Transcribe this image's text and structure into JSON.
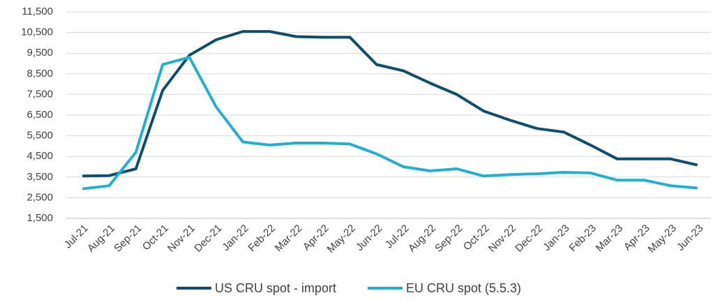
{
  "chart_data": {
    "type": "line",
    "categories": [
      "Jul-21",
      "Aug-21",
      "Sep-21",
      "Oct-21",
      "Nov-21",
      "Dec-21",
      "Jan-22",
      "Feb-22",
      "Mar-22",
      "Apr-22",
      "May-22",
      "Jun-22",
      "Jul-22",
      "Aug-22",
      "Sep-22",
      "Oct-22",
      "Nov-22",
      "Dec-22",
      "Jan-23",
      "Feb-23",
      "Mar-23",
      "Apr-23",
      "May-23",
      "Jun-23"
    ],
    "series": [
      {
        "name": "US CRU spot - import",
        "color": "#0e4d6e",
        "values": [
          3550,
          3570,
          3900,
          7700,
          9400,
          10150,
          10550,
          10550,
          10300,
          10270,
          10270,
          8950,
          8650,
          8050,
          7500,
          6700,
          6250,
          5850,
          5680,
          5050,
          4380,
          4380,
          4380,
          4080
        ]
      },
      {
        "name": "EU CRU spot (5.5.3)",
        "color": "#22b0d2",
        "values": [
          2930,
          3080,
          4700,
          8950,
          9300,
          6900,
          5200,
          5050,
          5150,
          5150,
          5100,
          4620,
          4000,
          3800,
          3900,
          3550,
          3620,
          3660,
          3730,
          3700,
          3350,
          3350,
          3080,
          2970
        ]
      }
    ],
    "ylim": [
      1500,
      11500
    ],
    "yticks": [
      {
        "value": 1500,
        "label": "1,500"
      },
      {
        "value": 2500,
        "label": "2,500"
      },
      {
        "value": 3500,
        "label": "3,500"
      },
      {
        "value": 4500,
        "label": "4,500"
      },
      {
        "value": 5500,
        "label": "5,500"
      },
      {
        "value": 6500,
        "label": "6,500"
      },
      {
        "value": 7500,
        "label": "7,500"
      },
      {
        "value": 8500,
        "label": "8,500"
      },
      {
        "value": 9500,
        "label": "9,500"
      },
      {
        "value": 10500,
        "label": "10,500"
      },
      {
        "value": 11500,
        "label": "11,500"
      }
    ],
    "grid": true,
    "legend": "bottom"
  }
}
